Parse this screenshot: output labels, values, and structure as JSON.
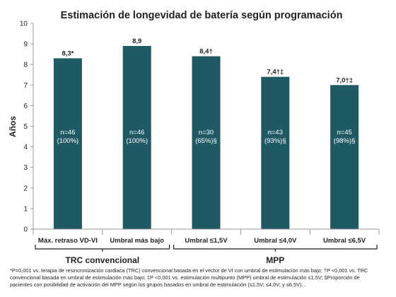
{
  "chart_data": {
    "type": "bar",
    "title": "Estimación de longevidad de batería según programación",
    "ylabel": "Años",
    "xlabel": "",
    "ylim": [
      0,
      10
    ],
    "yticks": [
      0,
      1,
      2,
      3,
      4,
      5,
      6,
      7,
      8,
      9,
      10
    ],
    "grid": false,
    "bar_color": "#1f5a64",
    "categories": [
      "Máx. retraso VD-VI",
      "Umbral más bajo",
      "Umbral ≤1,5V",
      "Umbral ≤4,0V",
      "Umbral ≤6,5V"
    ],
    "values": [
      8.3,
      8.9,
      8.4,
      7.4,
      7.0
    ],
    "value_labels": [
      "8,3*",
      "8,9",
      "8,4†",
      "7,4†‡",
      "7,0†‡"
    ],
    "inner_labels": [
      [
        "n=46",
        "(100%)"
      ],
      [
        "n=46",
        "(100%)"
      ],
      [
        "n=30",
        "(65%)§"
      ],
      [
        "n=43",
        "(93%)§"
      ],
      [
        "n=45",
        "(98%)§"
      ]
    ],
    "groups": [
      {
        "label": "TRC convencional",
        "categories": [
          0,
          1
        ]
      },
      {
        "label": "MPP",
        "categories": [
          2,
          3,
          4
        ]
      }
    ]
  },
  "footnote": {
    "lines": [
      "*P=0,001 vs. terapia de resincronización cardiaca (TRC) convencional basada en el vector de VI con umbral de estimulación más bajo; †P <0,001 vs. TRC",
      "convencional basada en umbral de estimulación más bajo; ‡P <0,001 vs. estimulación multipunto (MPP) umbral de estimulación ≤1,5V; §Proporción de",
      "pacientes con posibilidad de activación del MPP según los grupos basados en umbral de estimulación (≤1,5V; ≤4,0V; y ≤6,5V). ."
    ]
  }
}
